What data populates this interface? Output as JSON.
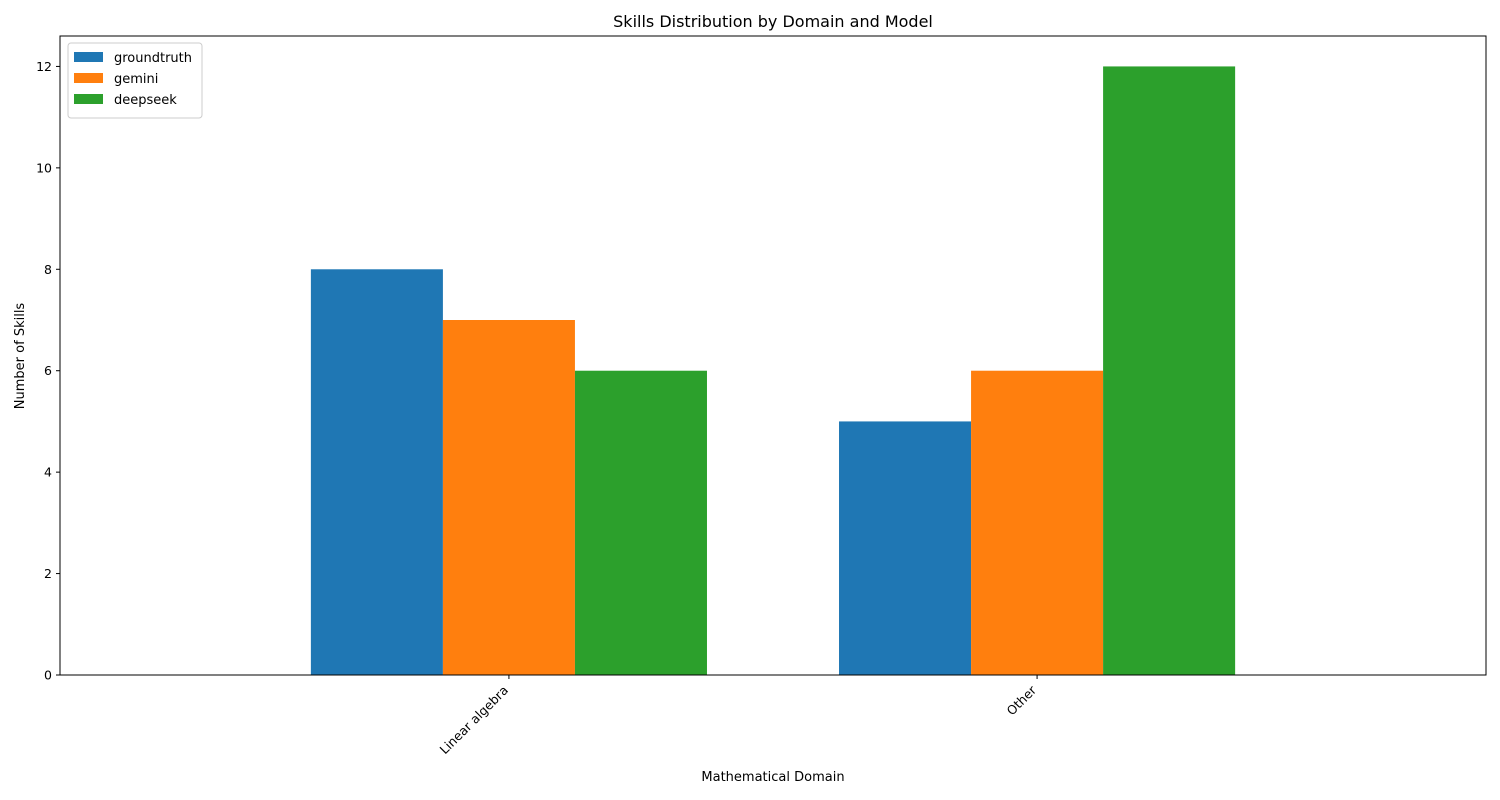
{
  "chart_data": {
    "type": "bar",
    "title": "Skills Distribution by Domain and Model",
    "xlabel": "Mathematical Domain",
    "ylabel": "Number of Skills",
    "categories": [
      "Linear algebra",
      "Other"
    ],
    "series": [
      {
        "name": "groundtruth",
        "values": [
          8,
          5
        ],
        "color": "#1f77b4"
      },
      {
        "name": "gemini",
        "values": [
          7,
          6
        ],
        "color": "#ff7f0e"
      },
      {
        "name": "deepseek",
        "values": [
          6,
          12
        ],
        "color": "#2ca02c"
      }
    ],
    "ylim": [
      0,
      12.6
    ],
    "yticks": [
      0,
      2,
      4,
      6,
      8,
      10,
      12
    ],
    "grid": false,
    "legend_position": "top-left"
  }
}
